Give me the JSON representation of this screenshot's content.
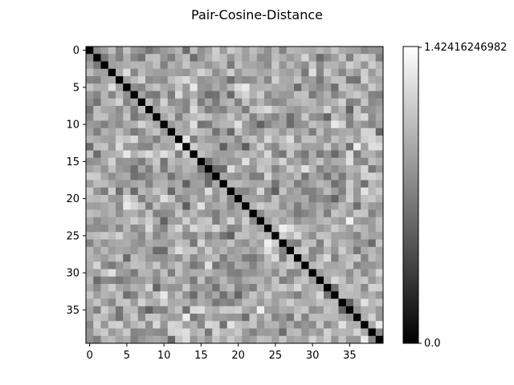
{
  "chart_data": {
    "type": "heatmap",
    "title": "Pair-Cosine-Distance",
    "size": 40,
    "colormap": "gray",
    "x_ticks": [
      "0",
      "5",
      "10",
      "15",
      "20",
      "25",
      "30",
      "35"
    ],
    "y_ticks": [
      "0",
      "5",
      "10",
      "15",
      "20",
      "25",
      "30",
      "35"
    ],
    "colorbar": {
      "min": 0.0,
      "max": 1.42416246982,
      "min_label": "0.0",
      "max_label": "1.42416246982"
    },
    "diagonal_value": 0.0,
    "off_diagonal_range": [
      0.45,
      1.42
    ]
  }
}
